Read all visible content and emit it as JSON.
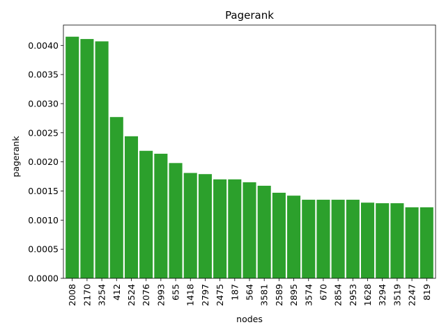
{
  "chart_data": {
    "type": "bar",
    "title": "Pagerank",
    "xlabel": "nodes",
    "ylabel": "pagerank",
    "categories": [
      "2008",
      "2170",
      "3254",
      "412",
      "2524",
      "2076",
      "2993",
      "655",
      "1418",
      "2797",
      "2475",
      "187",
      "564",
      "3581",
      "2589",
      "2895",
      "3574",
      "670",
      "2854",
      "2953",
      "1628",
      "3294",
      "3519",
      "2247",
      "819"
    ],
    "values": [
      0.00415,
      0.00411,
      0.00407,
      0.00277,
      0.00244,
      0.00219,
      0.00214,
      0.00198,
      0.00181,
      0.00179,
      0.0017,
      0.0017,
      0.00165,
      0.00159,
      0.00147,
      0.00142,
      0.00135,
      0.00135,
      0.00135,
      0.00135,
      0.0013,
      0.00129,
      0.00129,
      0.00122,
      0.00122
    ],
    "ylim": [
      0,
      0.00435
    ],
    "yticks": [
      "0.0000",
      "0.0005",
      "0.0010",
      "0.0015",
      "0.0020",
      "0.0025",
      "0.0030",
      "0.0035",
      "0.0040"
    ],
    "bar_color": "#2ca02c",
    "grid": false,
    "legend": "none"
  }
}
